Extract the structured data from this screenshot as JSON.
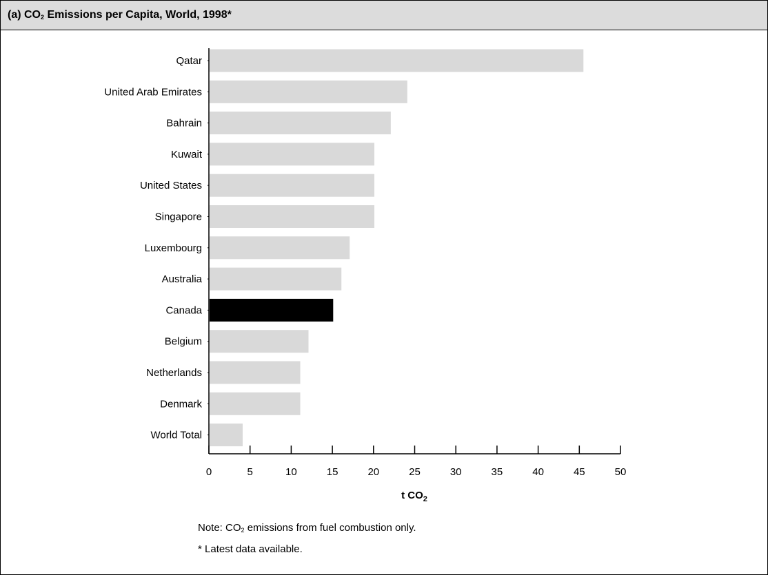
{
  "chart_data": {
    "type": "bar",
    "orientation": "horizontal",
    "title": {
      "prefix": "(a) CO",
      "sub": "2",
      "suffix": " Emissions per Capita, World, 1998*"
    },
    "categories": [
      "Qatar",
      "United Arab Emirates",
      "Bahrain",
      "Kuwait",
      "United States",
      "Singapore",
      "Luxembourg",
      "Australia",
      "Canada",
      "Belgium",
      "Netherlands",
      "Denmark",
      "World Total"
    ],
    "values": [
      45.5,
      24.1,
      22.1,
      20.1,
      20.1,
      20.1,
      17.1,
      16.1,
      15.1,
      12.1,
      11.1,
      11.1,
      4.1
    ],
    "highlight": "Canada",
    "xlim": [
      0,
      50
    ],
    "xticks": [
      0,
      5,
      10,
      15,
      20,
      25,
      30,
      35,
      40,
      45,
      50
    ],
    "xlabel": {
      "main": "t CO",
      "sub": "2"
    },
    "ylabel": "",
    "grid": false,
    "colors": {
      "bar": "#d9d9d9",
      "highlight": "#000000",
      "header": "#dcdcdc"
    }
  },
  "notes": {
    "line1_prefix": "Note: CO",
    "line1_sub": "2",
    "line1_suffix": " emissions from fuel combustion only.",
    "line2": "* Latest data available."
  }
}
